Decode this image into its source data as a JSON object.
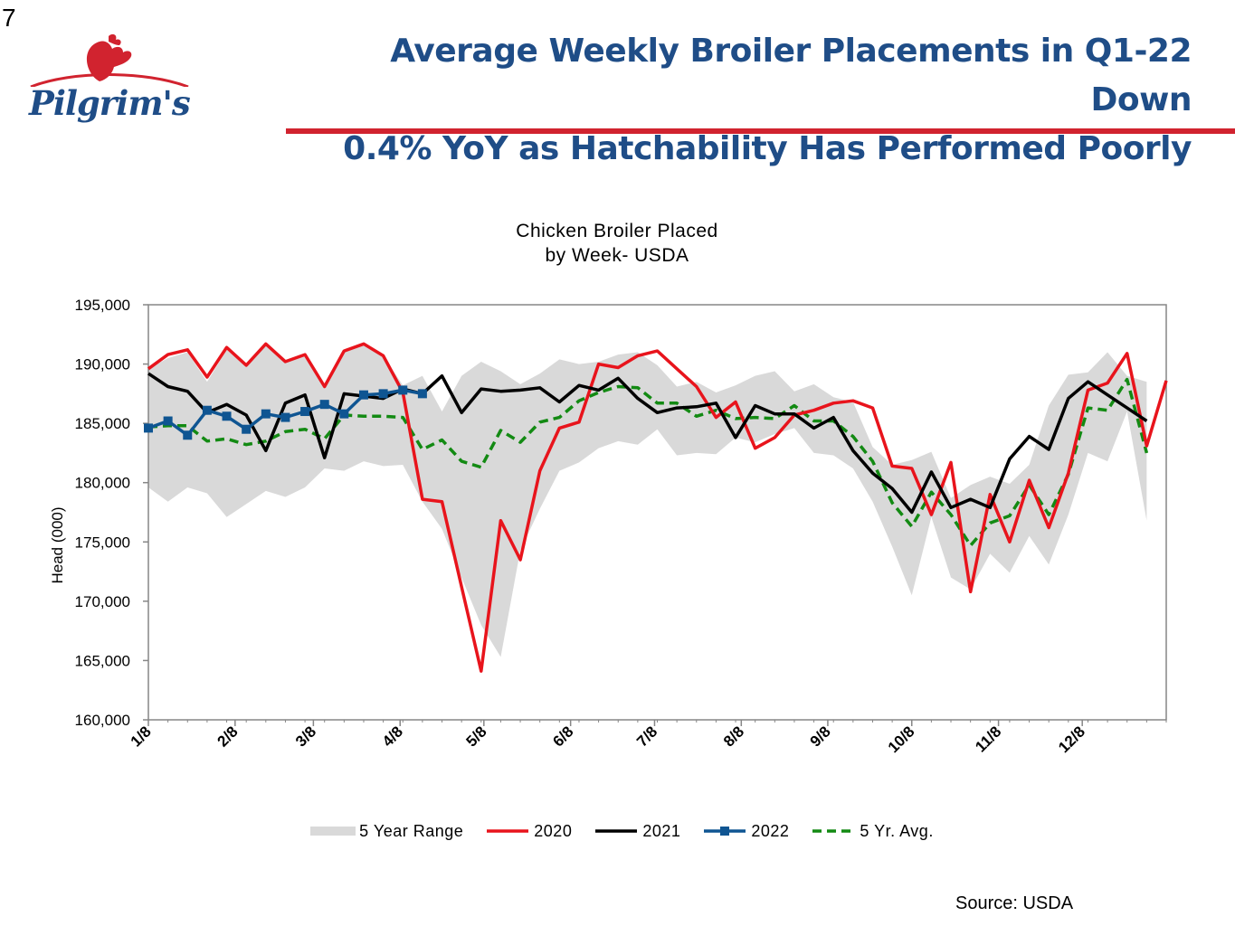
{
  "slide_number": "7",
  "logo": {
    "wordmark": "Pilgrim's"
  },
  "title_lines": [
    "Average Weekly Broiler Placements in Q1-22 Down",
    "0.4% YoY as Hatchability Has Performed Poorly"
  ],
  "source": "Source:  USDA",
  "colors": {
    "title": "#1f4d87",
    "title_rule": "#d1232f",
    "series_2020": "#e8141c",
    "series_2021": "#000000",
    "series_2022": "#0f5592",
    "series_avg": "#138a13",
    "range": "#d9d9d9"
  },
  "chart_data": {
    "type": "line",
    "title_lines": [
      "Chicken Broiler Placed",
      "by Week- USDA"
    ],
    "xlabel": "",
    "ylabel": "Head (000)",
    "ylim": [
      160000,
      195000
    ],
    "y_ticks": [
      160000,
      165000,
      170000,
      175000,
      180000,
      185000,
      190000,
      195000
    ],
    "y_tick_labels": [
      "160,000",
      "165,000",
      "170,000",
      "175,000",
      "180,000",
      "185,000",
      "190,000",
      "195,000"
    ],
    "week_range": [
      1,
      53
    ],
    "x_ticks": [
      {
        "week": 1,
        "label": "1/8"
      },
      {
        "week": 5.43,
        "label": "2/8"
      },
      {
        "week": 9.43,
        "label": "3/8"
      },
      {
        "week": 13.86,
        "label": "4/8"
      },
      {
        "week": 18.14,
        "label": "5/8"
      },
      {
        "week": 22.57,
        "label": "6/8"
      },
      {
        "week": 26.86,
        "label": "7/8"
      },
      {
        "week": 31.29,
        "label": "8/8"
      },
      {
        "week": 35.71,
        "label": "9/8"
      },
      {
        "week": 40.0,
        "label": "10/8"
      },
      {
        "week": 44.43,
        "label": "11/8"
      },
      {
        "week": 48.71,
        "label": "12/8"
      }
    ],
    "grid": false,
    "legend_position": "bottom",
    "legend": [
      "5 Year Range",
      "2020",
      "2021",
      "2022",
      "5 Yr. Avg."
    ],
    "range": {
      "name": "5 Year Range",
      "upper": [
        189600,
        190500,
        191000,
        188500,
        191200,
        189800,
        191800,
        190300,
        190800,
        188200,
        191000,
        191700,
        190700,
        188200,
        189000,
        186000,
        189000,
        190200,
        189400,
        188300,
        189200,
        190400,
        190000,
        190200,
        190800,
        191000,
        189900,
        188100,
        188500,
        187600,
        188200,
        189000,
        189400,
        187700,
        188300,
        187200,
        186800,
        183000,
        181500,
        181900,
        182600,
        178700,
        179800,
        180500,
        179900,
        181500,
        186500,
        189100,
        189300,
        191000,
        189000,
        188500
      ],
      "lower": [
        179600,
        178400,
        179600,
        179100,
        177100,
        178200,
        179300,
        178800,
        179600,
        181200,
        181000,
        181800,
        181400,
        181500,
        178400,
        176100,
        172000,
        168000,
        165300,
        174300,
        177800,
        181000,
        181700,
        182900,
        183500,
        183200,
        184500,
        182300,
        182500,
        182400,
        183800,
        183400,
        184100,
        184600,
        182500,
        182300,
        181200,
        178400,
        174600,
        170500,
        177100,
        172000,
        171000,
        174000,
        172400,
        175500,
        173100,
        177300,
        182500,
        181800,
        186000,
        176800
      ]
    },
    "series": [
      {
        "name": "2020",
        "values": [
          189600,
          190800,
          191200,
          188900,
          191400,
          189900,
          191700,
          190200,
          190800,
          188100,
          191100,
          191700,
          190700,
          187600,
          178600,
          178400,
          171200,
          164100,
          176800,
          173500,
          181000,
          184600,
          185100,
          190000,
          189700,
          190700,
          191100,
          189600,
          188100,
          185500,
          186800,
          182900,
          183800,
          185700,
          186100,
          186700,
          186900,
          186300,
          181400,
          181200,
          177300,
          181700,
          170800,
          179000,
          175000,
          180200,
          176200,
          180800,
          187800,
          188400,
          190900,
          183100,
          188600
        ]
      },
      {
        "name": "2021",
        "values": [
          189200,
          188100,
          187700,
          185900,
          186600,
          185700,
          182700,
          186700,
          187400,
          182100,
          187500,
          187300,
          187100,
          187900,
          187500,
          189000,
          185900,
          187900,
          187700,
          187800,
          188000,
          186800,
          188200,
          187800,
          188800,
          187100,
          185900,
          186300,
          186400,
          186700,
          183800,
          186500,
          185800,
          185800,
          184600,
          185500,
          182700,
          180800,
          179500,
          177500,
          180900,
          177900,
          178600,
          177900,
          182000,
          183900,
          182800,
          187100,
          188500,
          187400,
          186300,
          185200
        ]
      },
      {
        "name": "2022",
        "values": [
          184600,
          185200,
          184000,
          186100,
          185600,
          184500,
          185800,
          185500,
          186000,
          186600,
          185800,
          187400,
          187500,
          187800,
          187500
        ]
      },
      {
        "name": "5 Yr. Avg.",
        "values": [
          184700,
          184800,
          184800,
          183500,
          183700,
          183200,
          183500,
          184300,
          184500,
          183700,
          185700,
          185600,
          185600,
          185500,
          182800,
          183600,
          181800,
          181300,
          184400,
          183400,
          185100,
          185500,
          186900,
          187600,
          188100,
          188000,
          186700,
          186700,
          185600,
          186100,
          185400,
          185500,
          185400,
          186500,
          185200,
          185200,
          183900,
          181800,
          178300,
          176300,
          179200,
          177300,
          174700,
          176600,
          177200,
          179800,
          177300,
          180700,
          186300,
          186100,
          188700,
          182500
        ]
      }
    ]
  }
}
